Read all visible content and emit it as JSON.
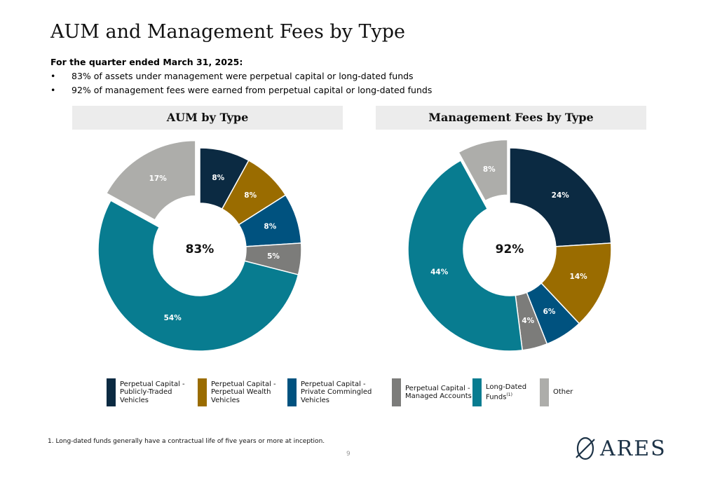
{
  "title": "AUM and Management Fees by Type",
  "subhead": "For the quarter ended March 31, 2025:",
  "bullets": [
    "83% of assets under management were perpetual capital or long-dated funds",
    "92% of management fees were earned from perpetual capital or long-dated funds"
  ],
  "bullet_char": "•",
  "colors": {
    "navy": "#0b2a42",
    "gold": "#9a6c00",
    "blue": "#00527f",
    "gray": "#7c7c7a",
    "teal": "#087c90",
    "light": "#adadaa"
  },
  "chart_data": [
    {
      "type": "pie",
      "title": "AUM by Type",
      "center_label": "83%",
      "slices": [
        {
          "label": "Perpetual Capital - Publicly-Traded Vehicles",
          "value": 8,
          "display": "8%",
          "color": "#0b2a42"
        },
        {
          "label": "Perpetual Capital - Perpetual Wealth Vehicles",
          "value": 8,
          "display": "8%",
          "color": "#9a6c00"
        },
        {
          "label": "Perpetual Capital - Private Commingled Vehicles",
          "value": 8,
          "display": "8%",
          "color": "#00527f"
        },
        {
          "label": "Perpetual Capital - Managed Accounts",
          "value": 5,
          "display": "5%",
          "color": "#7c7c7a"
        },
        {
          "label": "Long-Dated Funds",
          "value": 54,
          "display": "54%",
          "color": "#087c90"
        },
        {
          "label": "Other",
          "value": 17,
          "display": "17%",
          "color": "#adadaa",
          "exploded": true
        }
      ]
    },
    {
      "type": "pie",
      "title": "Management Fees by Type",
      "center_label": "92%",
      "slices": [
        {
          "label": "Perpetual Capital - Publicly-Traded Vehicles",
          "value": 24,
          "display": "24%",
          "color": "#0b2a42"
        },
        {
          "label": "Perpetual Capital - Perpetual Wealth Vehicles",
          "value": 14,
          "display": "14%",
          "color": "#9a6c00"
        },
        {
          "label": "Perpetual Capital - Private Commingled Vehicles",
          "value": 6,
          "display": "6%",
          "color": "#00527f"
        },
        {
          "label": "Perpetual Capital - Managed Accounts",
          "value": 4,
          "display": "4%",
          "color": "#7c7c7a"
        },
        {
          "label": "Long-Dated Funds",
          "value": 44,
          "display": "44%",
          "color": "#087c90"
        },
        {
          "label": "Other",
          "value": 8,
          "display": "8%",
          "color": "#adadaa",
          "exploded": true
        }
      ]
    }
  ],
  "legend": [
    {
      "text": "Perpetual Capital -\nPublicly-Traded\nVehicles",
      "color": "#0b2a42"
    },
    {
      "text": "Perpetual Capital -\nPerpetual Wealth\nVehicles",
      "color": "#9a6c00"
    },
    {
      "text": "Perpetual Capital -\nPrivate Commingled\nVehicles",
      "color": "#00527f"
    },
    {
      "text": "Perpetual Capital -\nManaged Accounts",
      "color": "#7c7c7a"
    },
    {
      "text": "Long-Dated\nFunds",
      "sup": "(1)",
      "color": "#087c90"
    },
    {
      "text": "Other",
      "color": "#adadaa"
    }
  ],
  "footnote": "1.  Long-dated funds generally have a contractual life of five years or more at inception.",
  "page_number": "9",
  "logo_text": "ARES"
}
